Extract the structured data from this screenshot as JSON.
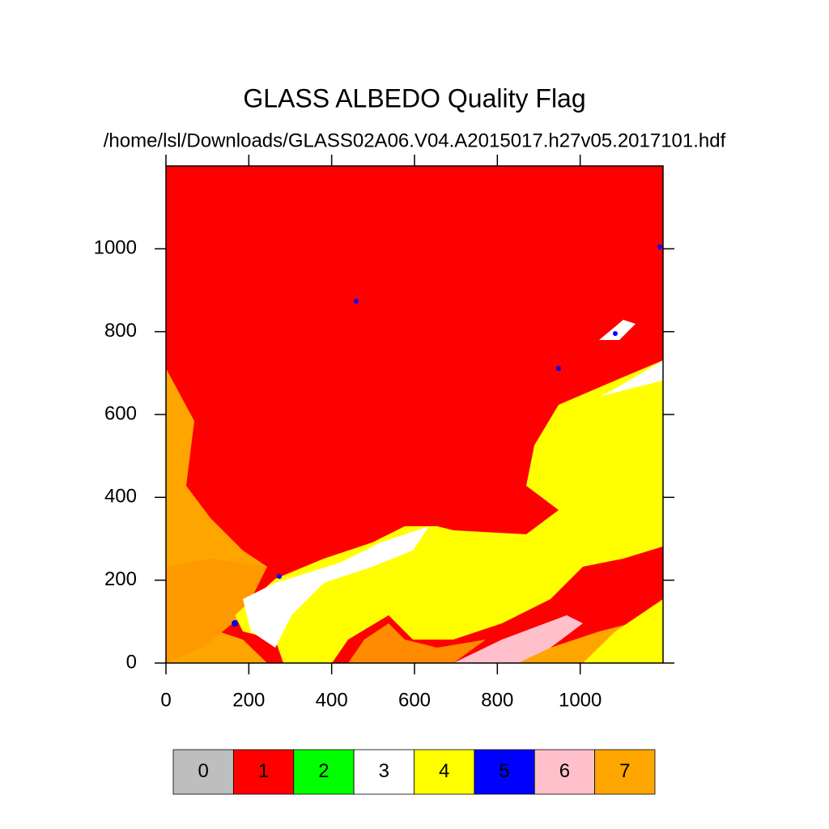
{
  "chart_data": {
    "type": "raster",
    "title": "GLASS ALBEDO Quality Flag",
    "subtitle": "/home/lsl/Downloads/GLASS02A06.V04.A2015017.h27v05.2017101.hdf",
    "xlim": [
      0,
      1200
    ],
    "ylim": [
      0,
      1200
    ],
    "xticks": [
      0,
      200,
      400,
      600,
      800,
      1000
    ],
    "yticks": [
      0,
      200,
      400,
      600,
      800,
      1000
    ],
    "legend": {
      "categories": [
        0,
        1,
        2,
        3,
        4,
        5,
        6,
        7
      ],
      "colors": [
        "#bebebe",
        "#ff0000",
        "#00ff00",
        "#ffffff",
        "#ffff00",
        "#0000ff",
        "#ffc0cb",
        "#ffa500"
      ]
    }
  }
}
